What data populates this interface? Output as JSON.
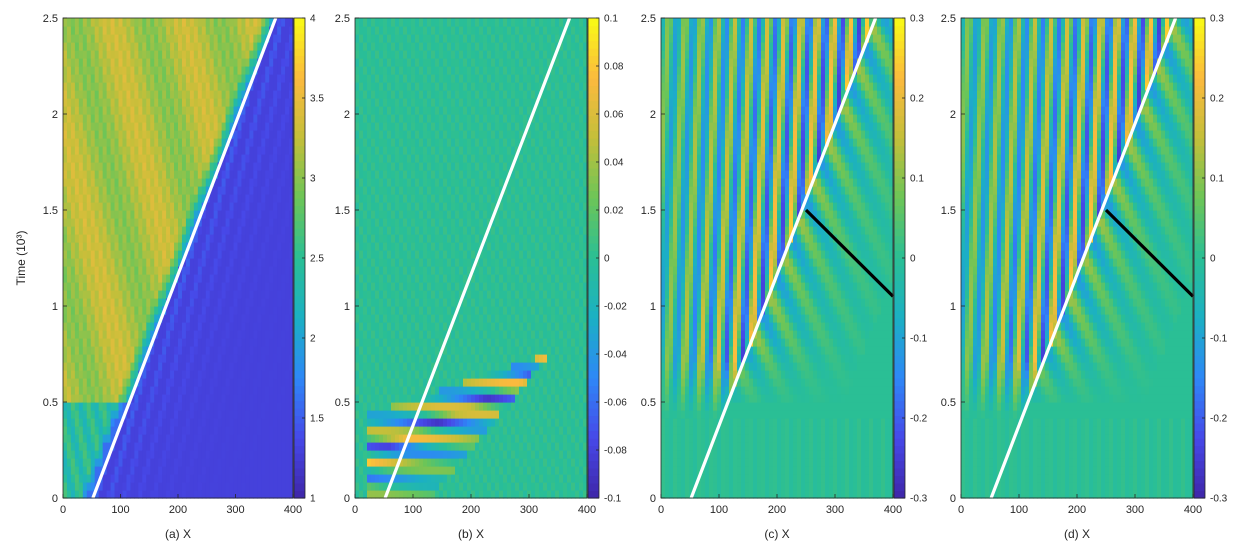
{
  "colormap": [
    "#3e26a8",
    "#4748e8",
    "#2e87f7",
    "#1bb0c4",
    "#2abf95",
    "#6cc558",
    "#c3bf3a",
    "#fbba3e",
    "#f9fb15"
  ],
  "chart_data": [
    {
      "type": "heatmap",
      "xlabel": "(a) X",
      "ylabel": "Time (10³)",
      "xlim": [
        0,
        400
      ],
      "ylim": [
        0,
        2.5
      ],
      "x_ticks": [
        "0",
        "100",
        "200",
        "300",
        "400"
      ],
      "y_ticks": [
        "0",
        "0.5",
        "1",
        "1.5",
        "2",
        "2.5"
      ],
      "colorbar": {
        "min": 1,
        "max": 4,
        "ticks": [
          "1",
          "1.5",
          "2",
          "2.5",
          "3",
          "3.5",
          "4"
        ]
      },
      "field": "step_front",
      "overlay_lines": [
        {
          "color": "#ffffff",
          "x": [
            52,
            370
          ],
          "y": [
            0,
            2.5
          ]
        }
      ]
    },
    {
      "type": "heatmap",
      "xlabel": "(b) X",
      "xlim": [
        0,
        400
      ],
      "ylim": [
        0,
        2.5
      ],
      "x_ticks": [
        "0",
        "100",
        "200",
        "300",
        "400"
      ],
      "y_ticks": [
        "0",
        "0.5",
        "1",
        "1.5",
        "2",
        "2.5"
      ],
      "colorbar": {
        "min": -0.1,
        "max": 0.1,
        "ticks": [
          "-0.1",
          "-0.08",
          "-0.06",
          "-0.04",
          "-0.02",
          "0",
          "0.02",
          "0.04",
          "0.06",
          "0.08",
          "0.1"
        ]
      },
      "field": "wavetrain",
      "overlay_lines": [
        {
          "color": "#ffffff",
          "x": [
            52,
            370
          ],
          "y": [
            0,
            2.5
          ]
        }
      ]
    },
    {
      "type": "heatmap",
      "xlabel": "(c) X",
      "xlim": [
        0,
        400
      ],
      "ylim": [
        0,
        2.5
      ],
      "x_ticks": [
        "0",
        "100",
        "200",
        "300",
        "400"
      ],
      "y_ticks": [
        "0",
        "0.5",
        "1",
        "1.5",
        "2",
        "2.5"
      ],
      "colorbar": {
        "min": -0.3,
        "max": 0.3,
        "ticks": [
          "-0.3",
          "-0.2",
          "-0.1",
          "0",
          "0.1",
          "0.2",
          "0.3"
        ]
      },
      "field": "stripes",
      "overlay_lines": [
        {
          "color": "#ffffff",
          "x": [
            52,
            370
          ],
          "y": [
            0,
            2.5
          ]
        },
        {
          "color": "#000000",
          "x": [
            250,
            400
          ],
          "y": [
            1.5,
            1.05
          ]
        }
      ]
    },
    {
      "type": "heatmap",
      "xlabel": "(d) X",
      "xlim": [
        0,
        400
      ],
      "ylim": [
        0,
        2.5
      ],
      "x_ticks": [
        "0",
        "100",
        "200",
        "300",
        "400"
      ],
      "y_ticks": [
        "0",
        "0.5",
        "1",
        "1.5",
        "2",
        "2.5"
      ],
      "colorbar": {
        "min": -0.3,
        "max": 0.3,
        "ticks": [
          "-0.3",
          "-0.2",
          "-0.1",
          "0",
          "0.1",
          "0.2",
          "0.3"
        ]
      },
      "field": "stripes",
      "overlay_lines": [
        {
          "color": "#ffffff",
          "x": [
            52,
            370
          ],
          "y": [
            0,
            2.5
          ]
        },
        {
          "color": "#000000",
          "x": [
            250,
            400
          ],
          "y": [
            1.5,
            1.05
          ]
        }
      ]
    }
  ]
}
